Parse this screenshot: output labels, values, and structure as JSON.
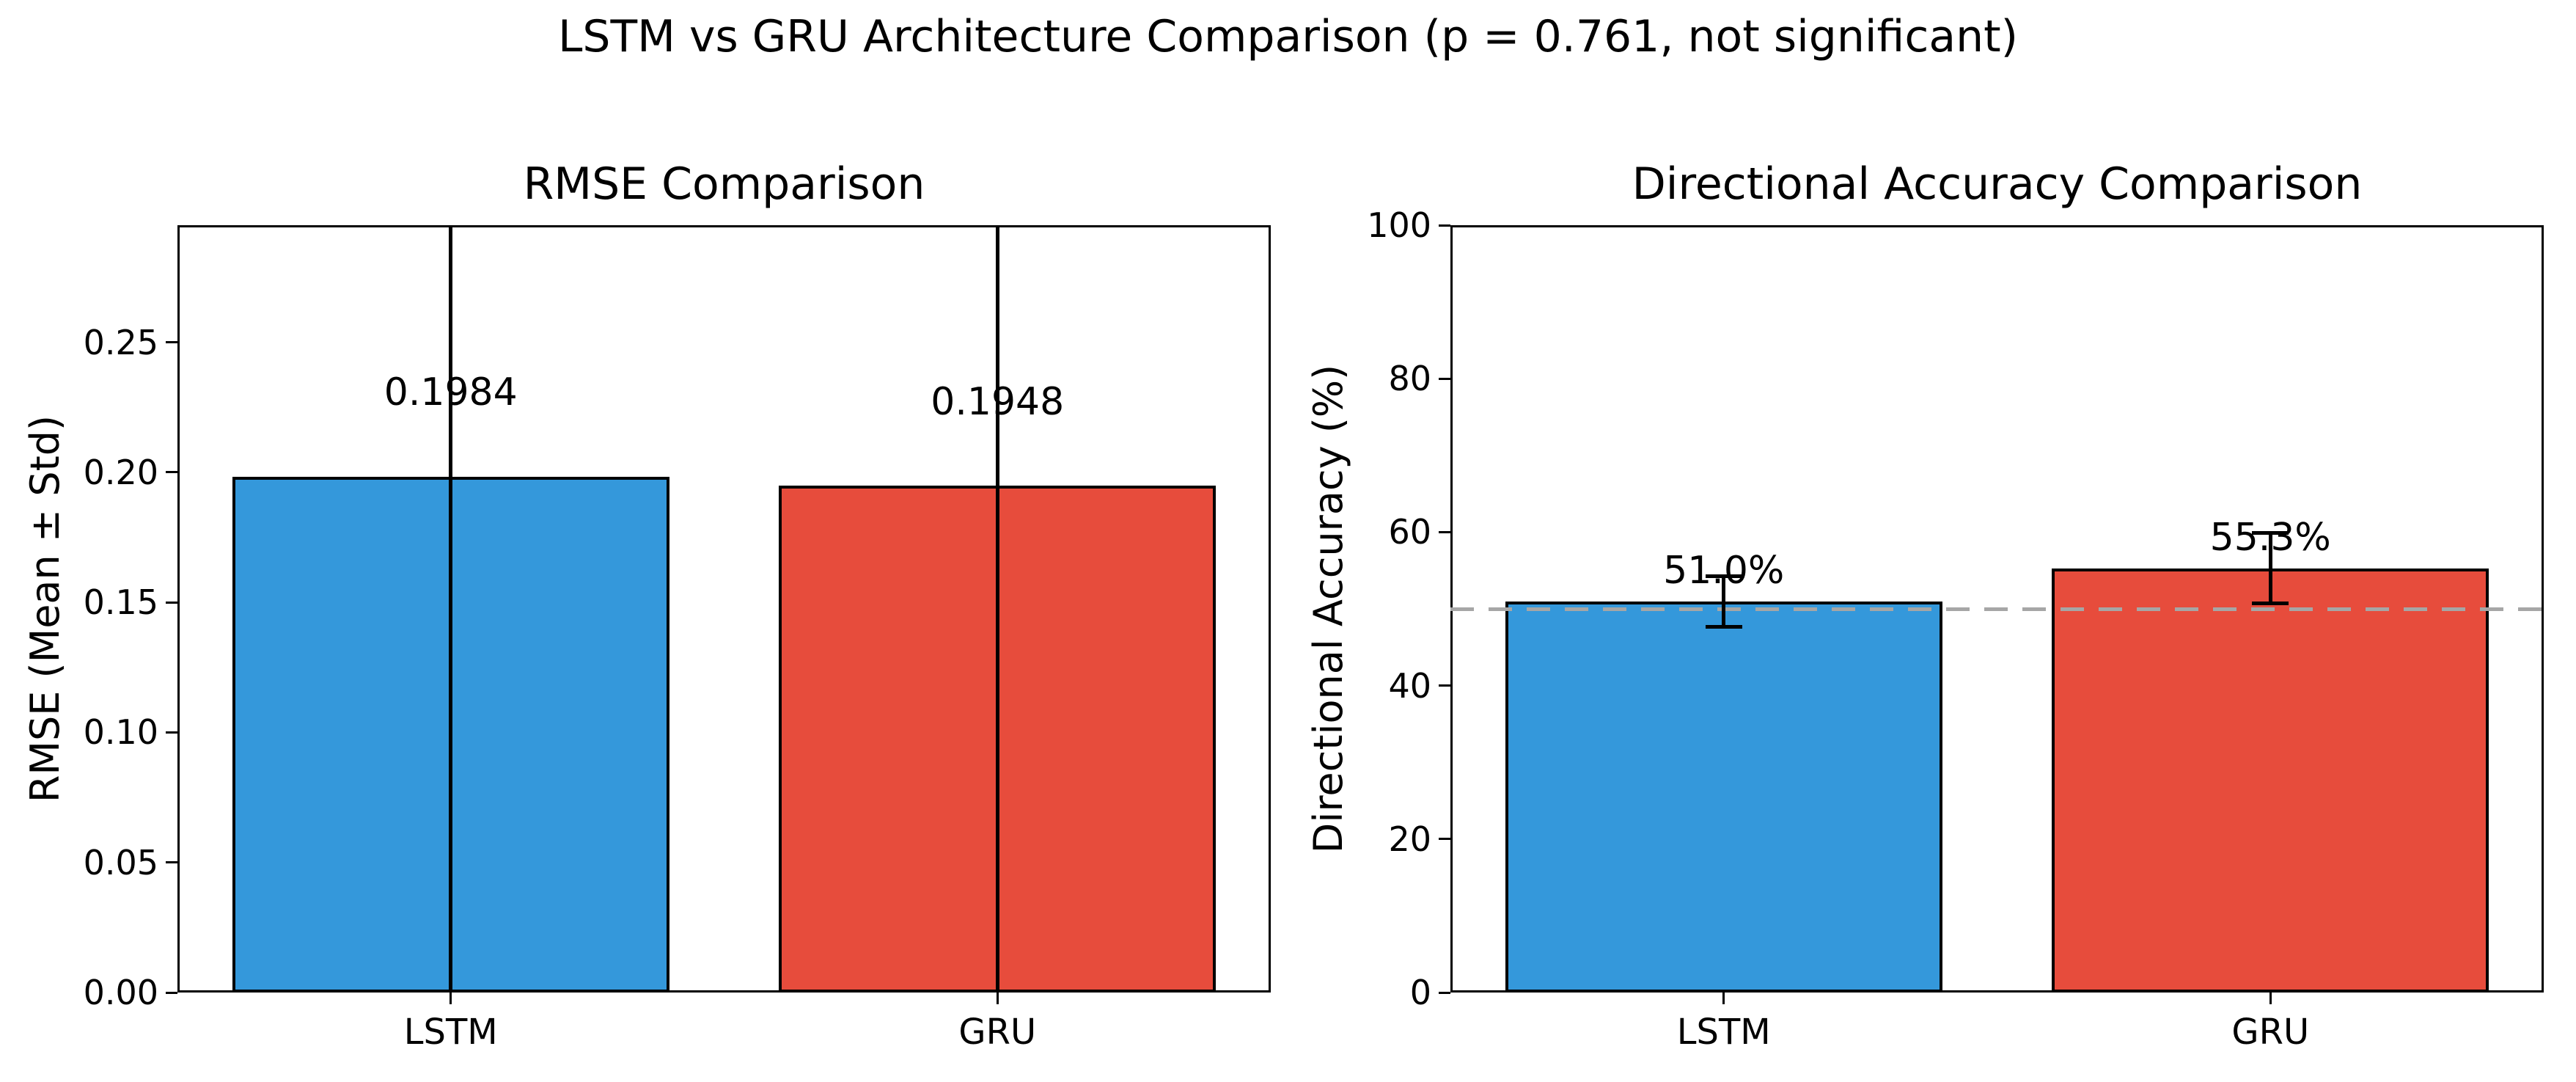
{
  "chart_data": {
    "type": "bar",
    "figure_title": "LSTM vs GRU Architecture Comparison (p = 0.761, not significant)",
    "layout_hint": "two side-by-side subplots, boxed axes, no grid, no legend",
    "subplots": [
      {
        "title": "RMSE Comparison",
        "ylabel": "RMSE (Mean ± Std)",
        "categories": [
          "LSTM",
          "GRU"
        ],
        "values": [
          0.1984,
          0.1948
        ],
        "bar_labels": [
          "0.1984",
          "0.1948"
        ],
        "bar_label_offset": 0.025,
        "bar_colors": [
          "#3498db",
          "#e74c3c"
        ],
        "edge_color": "#000000",
        "ylim": [
          0,
          0.295
        ],
        "yticks": [
          0,
          0.05,
          0.1,
          0.15,
          0.2,
          0.25
        ],
        "ytick_labels": [
          "0.00",
          "0.05",
          "0.10",
          "0.15",
          "0.20",
          "0.25"
        ],
        "error_style": "full-height-clipped",
        "error_note": "std exceeds axis range; error bar lines span entire plot height"
      },
      {
        "title": "Directional Accuracy Comparison",
        "ylabel": "Directional Accuracy (%)",
        "categories": [
          "LSTM",
          "GRU"
        ],
        "values": [
          51.0,
          55.3
        ],
        "bar_labels": [
          "51.0%",
          "55.3%"
        ],
        "bar_label_offset": 1.5,
        "bar_colors": [
          "#3498db",
          "#e74c3c"
        ],
        "edge_color": "#000000",
        "ylim": [
          0,
          100
        ],
        "yticks": [
          0,
          20,
          40,
          60,
          80,
          100
        ],
        "ytick_labels": [
          "0",
          "20",
          "40",
          "60",
          "80",
          "100"
        ],
        "error_style": "caps",
        "error_intervals": [
          [
            47.7,
            54.3
          ],
          [
            50.7,
            59.9
          ]
        ],
        "baseline": {
          "value": 50,
          "style": "dashed",
          "color": "#a6a6a6"
        }
      }
    ]
  }
}
